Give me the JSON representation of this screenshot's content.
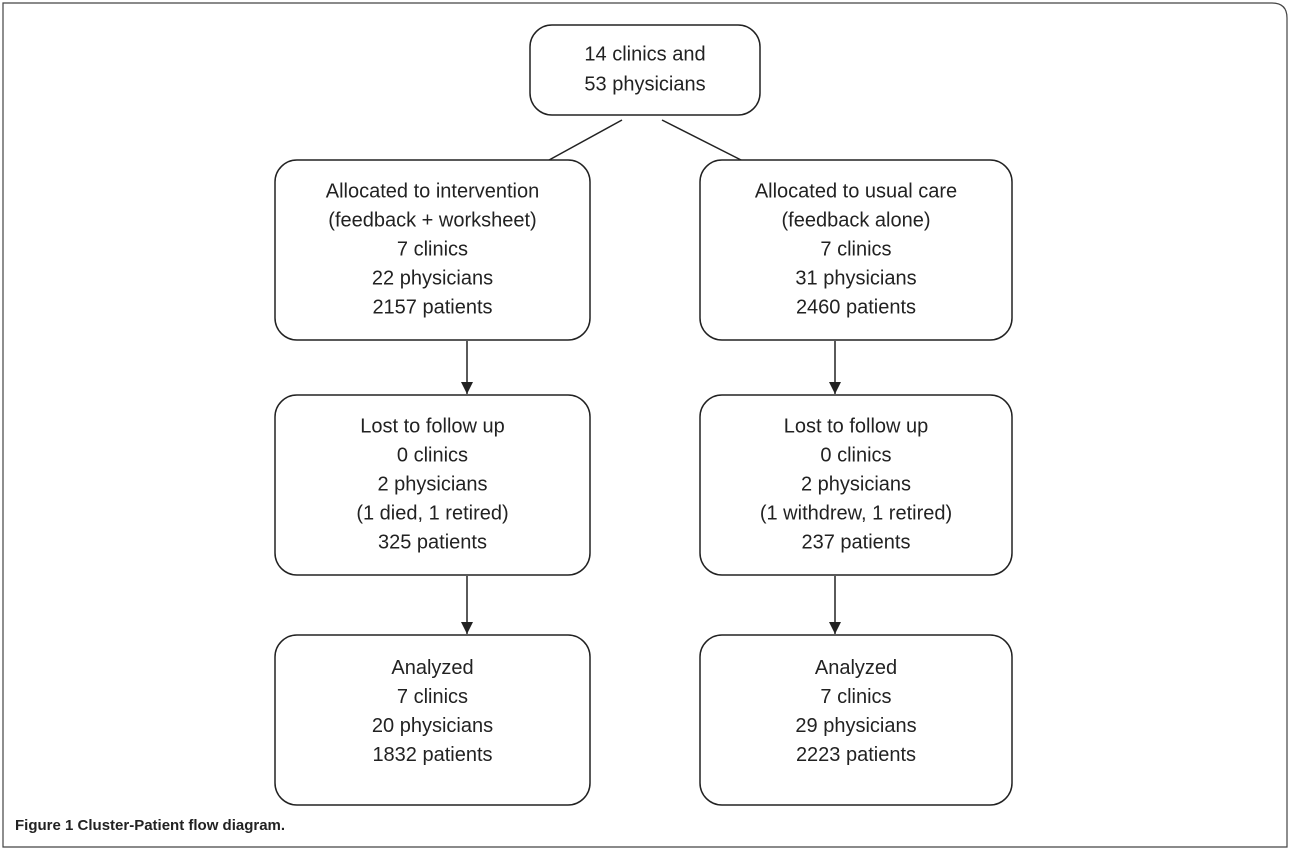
{
  "nodes": [
    {
      "lines": [
        "14 clinics and",
        "53 physicians"
      ]
    },
    {
      "lines": [
        "Allocated to intervention",
        "(feedback + worksheet)",
        "7 clinics",
        "22 physicians",
        "2157 patients"
      ]
    },
    {
      "lines": [
        "Allocated to usual care",
        "(feedback alone)",
        "7 clinics",
        "31 physicians",
        "2460 patients"
      ]
    },
    {
      "lines": [
        "Lost to follow up",
        "0 clinics",
        "2 physicians",
        "(1 died, 1 retired)",
        "325 patients"
      ]
    },
    {
      "lines": [
        "Lost to follow up",
        "0 clinics",
        "2 physicians",
        "(1 withdrew, 1 retired)",
        "237 patients"
      ]
    },
    {
      "lines": [
        "Analyzed",
        "7 clinics",
        "20 physicians",
        "1832 patients"
      ]
    },
    {
      "lines": [
        "Analyzed",
        "7 clinics",
        "29 physicians",
        "2223 patients"
      ]
    }
  ],
  "caption": {
    "label": "Figure 1",
    "text": "Cluster-Patient flow diagram."
  }
}
